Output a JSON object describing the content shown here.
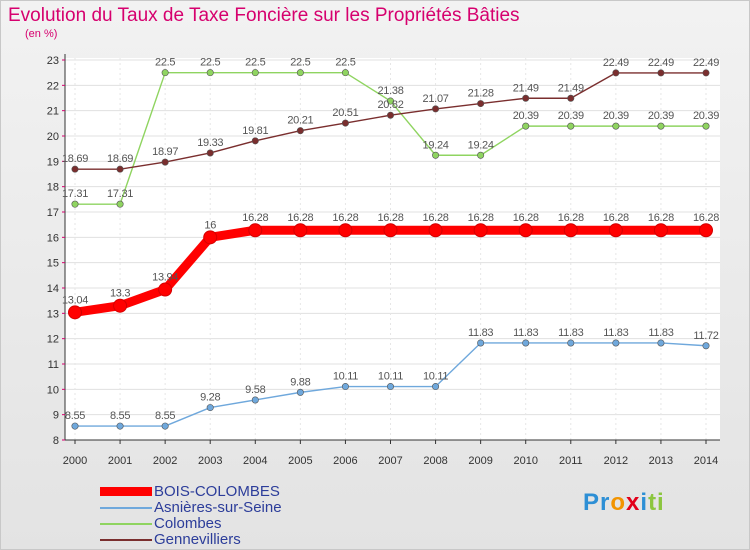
{
  "chart_data": {
    "type": "line",
    "title": "Evolution du Taux de Taxe Foncière sur les Propriétés Bâties",
    "unit_label": "(en %)",
    "x": [
      "2000",
      "2001",
      "2002",
      "2003",
      "2004",
      "2005",
      "2006",
      "2007",
      "2008",
      "2009",
      "2010",
      "2011",
      "2012",
      "2013",
      "2014"
    ],
    "ylim": [
      8,
      23
    ],
    "yticks": [
      8,
      9,
      10,
      11,
      12,
      13,
      14,
      15,
      16,
      17,
      18,
      19,
      20,
      21,
      22,
      23
    ],
    "series": [
      {
        "name": "BOIS-COLOMBES",
        "color": "#ff0000",
        "values": [
          13.04,
          13.3,
          13.94,
          16,
          16.28,
          16.28,
          16.28,
          16.28,
          16.28,
          16.28,
          16.28,
          16.28,
          16.28,
          16.28,
          16.28
        ],
        "labels": [
          "13.04",
          "13.3",
          "13.94",
          "16",
          "16.28",
          "16.28",
          "16.28",
          "16.28",
          "16.28",
          "16.28",
          "16.28",
          "16.28",
          "16.28",
          "16.28",
          "16.28"
        ]
      },
      {
        "name": "Asnières-sur-Seine",
        "color": "#6fa8dc",
        "values": [
          8.55,
          8.55,
          8.55,
          9.28,
          9.58,
          9.88,
          10.11,
          10.11,
          10.11,
          11.83,
          11.83,
          11.83,
          11.83,
          11.83,
          11.72
        ],
        "labels": [
          "8.55",
          "8.55",
          "8.55",
          "9.28",
          "9.58",
          "9.88",
          "10.11",
          "10.11",
          "10.11",
          "11.83",
          "11.83",
          "11.83",
          "11.83",
          "11.83",
          "11.72"
        ]
      },
      {
        "name": "Colombes",
        "color": "#8fd460",
        "values": [
          17.31,
          17.31,
          22.5,
          22.5,
          22.5,
          22.5,
          22.5,
          21.38,
          19.24,
          19.24,
          20.39,
          20.39,
          20.39,
          20.39,
          20.39
        ],
        "labels": [
          "17.31",
          "17.31",
          "22.5",
          "22.5",
          "22.5",
          "22.5",
          "22.5",
          "21.38",
          "19.24",
          "19.24",
          "20.39",
          "20.39",
          "20.39",
          "20.39",
          "20.39"
        ]
      },
      {
        "name": "Gennevilliers",
        "color": "#7a2e2e",
        "values": [
          18.69,
          18.69,
          18.97,
          19.33,
          19.81,
          20.21,
          20.51,
          20.82,
          21.07,
          21.28,
          21.49,
          21.49,
          22.49,
          22.49,
          22.49
        ],
        "labels": [
          "18.69",
          "18.69",
          "18.97",
          "19.33",
          "19.81",
          "20.21",
          "20.51",
          "20.82",
          "21.07",
          "21.28",
          "21.49",
          "21.49",
          "22.49",
          "22.49",
          "22.49"
        ]
      }
    ]
  },
  "legend": {
    "items": [
      {
        "label": "BOIS-COLOMBES"
      },
      {
        "label": "Asnières-sur-Seine"
      },
      {
        "label": "Colombes"
      },
      {
        "label": "Gennevilliers"
      }
    ]
  },
  "logo": {
    "text": "Proxiti"
  }
}
